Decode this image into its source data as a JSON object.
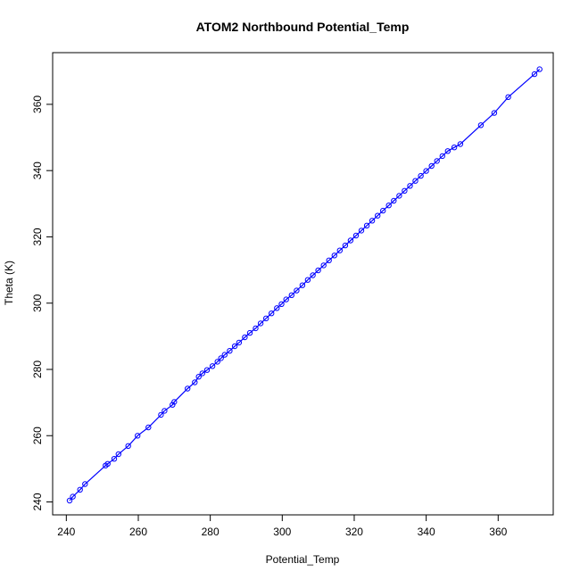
{
  "chart_data": {
    "type": "scatter",
    "title": "ATOM2 Northbound Potential_Temp",
    "xlabel": "Potential_Temp",
    "ylabel": "Theta (K)",
    "xlim": [
      236.2,
      375.3
    ],
    "ylim": [
      236.1,
      375.6
    ],
    "xticks": [
      "240",
      "260",
      "280",
      "300",
      "320",
      "340",
      "360"
    ],
    "yticks": [
      "240",
      "260",
      "280",
      "300",
      "320",
      "340",
      "360"
    ],
    "series_color": "#0000ff",
    "marker": "open-circle",
    "connected_line": true,
    "grid": false,
    "x": [
      240.9,
      241.8,
      243.8,
      245.2,
      250.9,
      251.5,
      253.3,
      254.5,
      257.2,
      259.8,
      262.8,
      266.3,
      267.3,
      269.5,
      270.0,
      273.7,
      275.7,
      276.8,
      277.8,
      279.1,
      280.6,
      282.0,
      283.0,
      284.0,
      285.4,
      286.8,
      288.0,
      289.6,
      291.0,
      292.6,
      294.0,
      295.5,
      297.0,
      298.5,
      299.8,
      301.1,
      302.6,
      304.0,
      305.6,
      307.1,
      308.5,
      310.0,
      311.5,
      313.0,
      314.5,
      316.0,
      317.5,
      319.0,
      320.5,
      322.0,
      323.5,
      325.0,
      326.5,
      328.0,
      329.6,
      331.0,
      332.5,
      334.0,
      335.5,
      337.0,
      338.5,
      340.0,
      341.5,
      343.0,
      344.5,
      346.0,
      347.8,
      349.5,
      355.2,
      358.9,
      362.8,
      370.1,
      371.5
    ],
    "y": [
      240.4,
      241.6,
      243.7,
      245.4,
      251.0,
      251.5,
      253.0,
      254.4,
      256.9,
      260.0,
      262.5,
      266.3,
      267.5,
      269.3,
      270.2,
      274.2,
      276.1,
      277.8,
      278.8,
      279.8,
      281.0,
      282.3,
      283.4,
      284.4,
      285.6,
      287.0,
      288.1,
      289.7,
      291.0,
      292.4,
      293.9,
      295.4,
      296.9,
      298.5,
      299.7,
      301.1,
      302.4,
      303.8,
      305.4,
      307.0,
      308.4,
      309.9,
      311.4,
      312.9,
      314.4,
      315.9,
      317.4,
      318.9,
      320.4,
      321.9,
      323.4,
      324.9,
      326.4,
      327.9,
      329.5,
      330.9,
      332.4,
      333.9,
      335.4,
      336.9,
      338.4,
      339.9,
      341.4,
      342.9,
      344.4,
      345.9,
      347.0,
      348.0,
      353.7,
      357.4,
      362.2,
      369.1,
      370.6
    ]
  }
}
